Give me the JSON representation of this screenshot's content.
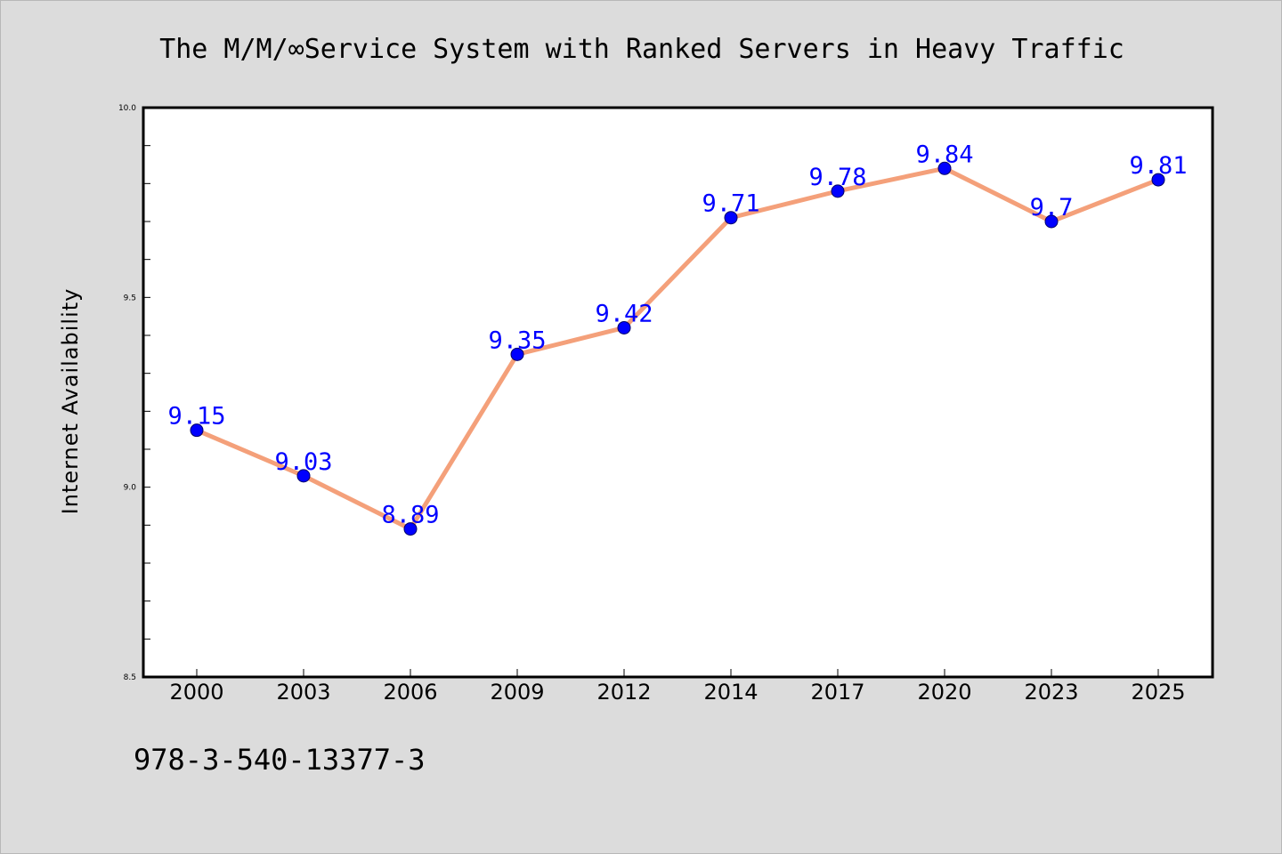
{
  "footer": {
    "isbn": "978-3-540-13377-3"
  },
  "chart_data": {
    "type": "line",
    "title": "The M/M/∞Service System with Ranked Servers in Heavy Traffic",
    "xlabel": "",
    "ylabel": "Internet Availability",
    "categories": [
      "2000",
      "2003",
      "2006",
      "2009",
      "2012",
      "2014",
      "2017",
      "2020",
      "2023",
      "2025"
    ],
    "series": [
      {
        "values": [
          9.15,
          9.03,
          8.89,
          9.35,
          9.42,
          9.71,
          9.78,
          9.84,
          9.7,
          9.81
        ],
        "data_labels": [
          "9.15",
          "9.03",
          "8.89",
          "9.35",
          "9.42",
          "9.71",
          "9.78",
          "9.84",
          "9.7",
          "9.81"
        ],
        "line_color": "#f4a07a",
        "marker_color": "#0000ff"
      }
    ],
    "ylim": [
      8.5,
      10.0
    ],
    "y_major_ticks": [
      8.5,
      9.0,
      9.5,
      10.0
    ],
    "y_tick_labels": [
      "8.5",
      "9.0",
      "9.5",
      "10.0"
    ],
    "grid": false,
    "legend": "none",
    "background_color": "#dcdcdc",
    "plot_background_color": "#ffffff"
  }
}
